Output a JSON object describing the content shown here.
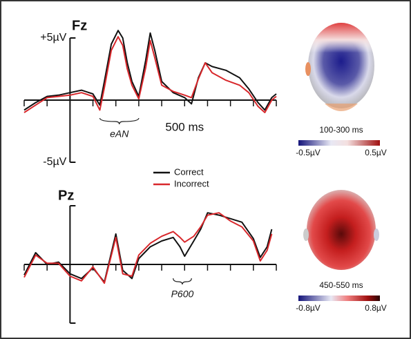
{
  "chart_data": [
    {
      "type": "line",
      "title": "Fz",
      "annotation": "eAN",
      "x": [
        -200,
        -150,
        -100,
        -50,
        0,
        50,
        100,
        130,
        150,
        180,
        210,
        230,
        250,
        270,
        300,
        330,
        350,
        370,
        400,
        450,
        500,
        530,
        560,
        590,
        620,
        680,
        740,
        780,
        820,
        850,
        880,
        900
      ],
      "series": [
        {
          "name": "Correct",
          "color": "#111111",
          "values": [
            -0.8,
            -0.2,
            0.3,
            0.4,
            0.6,
            0.8,
            0.5,
            -0.4,
            1.5,
            4.5,
            5.6,
            5.0,
            3.0,
            1.5,
            0.3,
            3.2,
            5.4,
            4.0,
            1.5,
            0.6,
            0.2,
            -0.3,
            1.8,
            3.0,
            2.7,
            2.4,
            1.8,
            0.9,
            -0.2,
            -0.8,
            0.2,
            0.5
          ]
        },
        {
          "name": "Incorrect",
          "color": "#d8272b",
          "values": [
            -1.0,
            -0.4,
            0.2,
            0.3,
            0.4,
            0.6,
            0.3,
            -0.8,
            1.0,
            4.0,
            5.1,
            4.4,
            2.5,
            1.2,
            0.1,
            2.6,
            4.8,
            3.4,
            1.2,
            0.7,
            0.4,
            0.2,
            1.7,
            3.0,
            2.2,
            1.6,
            1.2,
            0.6,
            -0.5,
            -1.0,
            0.0,
            0.3
          ]
        }
      ],
      "xlim": [
        -200,
        900
      ],
      "xticks": [
        {
          "value": -200,
          "label": null
        },
        {
          "value": -100,
          "label": null
        },
        {
          "value": 0,
          "label": null
        },
        {
          "value": 100,
          "label": null
        },
        {
          "value": 200,
          "label": null
        },
        {
          "value": 300,
          "label": null
        },
        {
          "value": 400,
          "label": null
        },
        {
          "value": 500,
          "label": "500 ms"
        },
        {
          "value": 600,
          "label": null
        },
        {
          "value": 700,
          "label": null
        },
        {
          "value": 800,
          "label": null
        },
        {
          "value": 900,
          "label": null
        }
      ],
      "ylim": [
        -5,
        5
      ],
      "yticks": [
        {
          "value": 5,
          "label": "+5µV"
        },
        {
          "value": -5,
          "label": "-5µV"
        }
      ]
    },
    {
      "type": "line",
      "title": "Pz",
      "annotation": "P600",
      "x": [
        -200,
        -150,
        -100,
        -50,
        0,
        50,
        100,
        150,
        200,
        230,
        270,
        300,
        350,
        400,
        450,
        480,
        500,
        540,
        570,
        600,
        650,
        700,
        750,
        800,
        830,
        860,
        880
      ],
      "series": [
        {
          "color": "#111111",
          "values": [
            -0.9,
            1.0,
            0,
            0.2,
            -0.8,
            -1.2,
            -0.3,
            -1.5,
            2.6,
            -0.5,
            -1.2,
            0.5,
            1.5,
            2.0,
            2.3,
            1.5,
            0.7,
            2.0,
            3.0,
            4.4,
            4.2,
            3.9,
            3.6,
            2.2,
            0.6,
            1.5,
            3.0
          ]
        },
        {
          "color": "#d8272b",
          "values": [
            -1.1,
            0.8,
            0.1,
            0.1,
            -1.0,
            -1.4,
            -0.2,
            -1.6,
            2.3,
            -0.8,
            -1.0,
            0.8,
            1.8,
            2.4,
            2.8,
            2.3,
            1.9,
            2.4,
            3.2,
            4.2,
            4.4,
            3.7,
            3.2,
            2.0,
            0.3,
            1.2,
            2.6
          ]
        }
      ],
      "xlim": [
        -200,
        900
      ],
      "xticks": [
        -200,
        -100,
        0,
        100,
        200,
        300,
        400,
        500,
        600,
        700,
        800,
        900
      ],
      "ylim": [
        -5,
        5
      ],
      "yticks": [
        5,
        -5
      ]
    }
  ],
  "topomaps": [
    {
      "title": "100-300 ms",
      "min_label": "-0.5µV",
      "max_label": "0.5µV"
    },
    {
      "title": "450-550 ms",
      "min_label": "-0.8µV",
      "max_label": "0.8µV"
    }
  ]
}
